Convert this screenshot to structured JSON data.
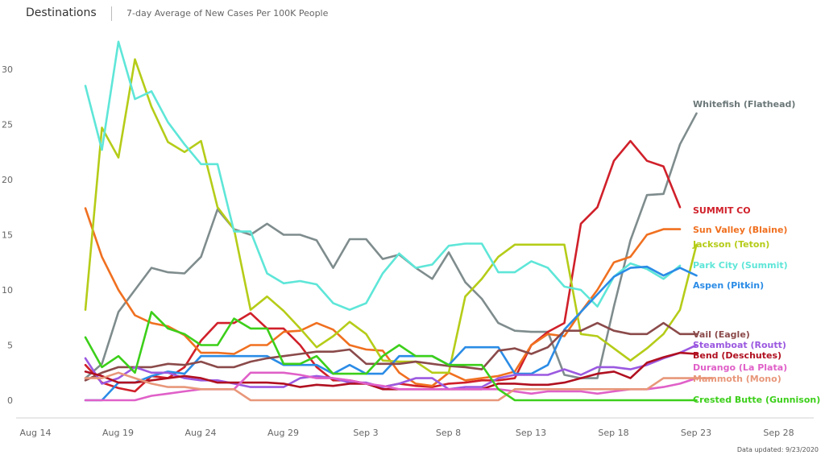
{
  "header": {
    "title": "Destinations",
    "subtitle": "7-day Average of New Cases Per 100K People"
  },
  "footer": {
    "updated": "Data updated: 9/23/2020"
  },
  "chart_data": {
    "type": "line",
    "title": "Destinations",
    "subtitle": "7-day Average of New Cases Per 100K People",
    "xlabel": "",
    "ylabel": "",
    "x_tick_labels": [
      "Aug 14",
      "Aug 19",
      "Aug 24",
      "Aug 29",
      "Sep 3",
      "Sep 8",
      "Sep 13",
      "Sep 18",
      "Sep 23",
      "Sep 28"
    ],
    "y_ticks": [
      0,
      5,
      10,
      15,
      20,
      25,
      30
    ],
    "ylim": [
      -2,
      34
    ],
    "grid": false,
    "legend": "inline labels at right end of lines",
    "x_start_date": "2020-08-18",
    "series": [
      {
        "name": "Whitefish (Flathead)",
        "color": "#7f8c8d",
        "values": [
          2.0,
          3.3,
          8.0,
          10.0,
          12.0,
          11.6,
          11.5,
          13.0,
          17.3,
          15.5,
          15.0,
          16.0,
          15.0,
          15.0,
          14.5,
          12.0,
          14.6,
          14.6,
          12.8,
          13.2,
          12.0,
          11.0,
          13.4,
          10.7,
          9.2,
          7.0,
          6.3,
          6.2,
          6.2,
          2.3,
          2.0,
          2.0,
          8.5,
          14.5,
          18.6,
          18.7,
          23.2,
          26.0
        ]
      },
      {
        "name": "SUMMIT CO",
        "color": "#d0202a",
        "values": [
          3.2,
          1.6,
          1.1,
          0.8,
          2.2,
          2.0,
          3.0,
          5.4,
          7.0,
          7.0,
          7.9,
          6.5,
          6.5,
          5.0,
          3.0,
          1.8,
          1.8,
          1.5,
          1.2,
          1.5,
          1.3,
          1.2,
          1.5,
          1.6,
          1.8,
          1.8,
          2.0,
          5.0,
          6.2,
          7.0,
          16.0,
          17.5,
          21.7,
          23.5,
          21.7,
          21.2,
          17.5
        ]
      },
      {
        "name": "Sun Valley (Blaine)",
        "color": "#f07020",
        "values": [
          17.4,
          13.0,
          10.0,
          7.7,
          7.0,
          6.7,
          5.9,
          4.3,
          4.3,
          4.2,
          5.0,
          5.0,
          6.2,
          6.3,
          7.0,
          6.4,
          5.0,
          4.6,
          4.5,
          2.5,
          1.5,
          1.3,
          2.5,
          1.8,
          2.0,
          2.2,
          2.6,
          5.0,
          6.0,
          5.8,
          8.0,
          10.0,
          12.5,
          13.0,
          15.0,
          15.5,
          15.5
        ]
      },
      {
        "name": "Jackson (Teton)",
        "color": "#b5cc18",
        "values": [
          8.2,
          24.7,
          22.0,
          30.9,
          26.6,
          23.4,
          22.5,
          23.5,
          17.5,
          15.5,
          8.2,
          9.4,
          8.1,
          6.5,
          4.8,
          5.8,
          7.1,
          6.0,
          3.6,
          3.5,
          3.5,
          2.5,
          2.5,
          9.4,
          11.0,
          13.0,
          14.1,
          14.1,
          14.1,
          14.1,
          6.0,
          5.8,
          4.7,
          3.6,
          4.7,
          6.0,
          8.2,
          14.1
        ]
      },
      {
        "name": "Park City (Summit)",
        "color": "#5ee6d8",
        "values": [
          28.5,
          22.7,
          32.5,
          27.3,
          28.0,
          25.2,
          23.2,
          21.4,
          21.4,
          15.3,
          15.3,
          11.5,
          10.6,
          10.8,
          10.5,
          8.8,
          8.2,
          8.8,
          11.5,
          13.3,
          12.0,
          12.3,
          14.0,
          14.2,
          14.2,
          11.6,
          11.6,
          12.6,
          12.0,
          10.3,
          10.0,
          8.5,
          11.2,
          12.4,
          11.9,
          11.0,
          12.2
        ]
      },
      {
        "name": "Aspen (Pitkin)",
        "color": "#2b8ce6",
        "values": [
          0.0,
          0.0,
          1.6,
          1.6,
          2.2,
          2.6,
          2.4,
          4.0,
          4.0,
          4.0,
          4.0,
          4.0,
          3.2,
          3.2,
          3.2,
          2.4,
          3.2,
          2.4,
          2.4,
          4.0,
          4.0,
          4.0,
          3.2,
          4.8,
          4.8,
          4.8,
          2.4,
          2.4,
          3.2,
          6.4,
          8.0,
          9.6,
          11.2,
          12.0,
          12.1,
          11.3,
          12.0,
          11.3
        ]
      },
      {
        "name": "Vail (Eagle)",
        "color": "#8b4a4a",
        "values": [
          1.8,
          2.5,
          3.0,
          3.0,
          3.0,
          3.3,
          3.2,
          3.5,
          3.0,
          3.0,
          3.5,
          3.8,
          4.0,
          4.2,
          4.4,
          4.4,
          4.6,
          3.3,
          3.3,
          3.3,
          3.5,
          3.3,
          3.1,
          3.0,
          2.8,
          4.5,
          4.7,
          4.2,
          4.8,
          6.3,
          6.3,
          7.0,
          6.3,
          6.0,
          6.0,
          7.0,
          6.0,
          6.0
        ]
      },
      {
        "name": "Steamboat (Routt)",
        "color": "#9b59e0",
        "values": [
          3.8,
          1.5,
          2.0,
          3.0,
          2.5,
          2.5,
          2.0,
          1.8,
          1.8,
          1.5,
          1.2,
          1.2,
          1.2,
          2.0,
          2.2,
          2.0,
          1.6,
          1.6,
          1.2,
          1.5,
          2.0,
          2.0,
          1.0,
          1.2,
          1.2,
          2.0,
          2.3,
          2.3,
          2.3,
          2.8,
          2.3,
          3.0,
          3.0,
          2.8,
          3.2,
          3.8,
          4.3,
          5.0
        ]
      },
      {
        "name": "Bend (Deschutes)",
        "color": "#b01020",
        "values": [
          2.6,
          2.2,
          1.6,
          1.6,
          1.8,
          2.0,
          2.2,
          2.0,
          1.6,
          1.6,
          1.6,
          1.6,
          1.5,
          1.2,
          1.4,
          1.3,
          1.5,
          1.5,
          1.0,
          1.0,
          1.0,
          1.0,
          1.0,
          1.0,
          1.0,
          1.5,
          1.5,
          1.4,
          1.4,
          1.6,
          2.0,
          2.4,
          2.6,
          2.0,
          3.4,
          3.9,
          4.3,
          4.2
        ]
      },
      {
        "name": "Durango (La Plata)",
        "color": "#e060c8",
        "values": [
          0.0,
          0.0,
          0.0,
          0.0,
          0.4,
          0.6,
          0.8,
          1.0,
          1.0,
          1.0,
          2.5,
          2.5,
          2.5,
          2.3,
          2.0,
          2.0,
          1.8,
          1.5,
          1.3,
          1.0,
          1.0,
          1.0,
          1.0,
          1.0,
          1.0,
          1.0,
          0.8,
          0.6,
          0.8,
          0.8,
          0.8,
          0.6,
          0.8,
          1.0,
          1.0,
          1.2,
          1.5,
          2.0
        ]
      },
      {
        "name": "Mammoth (Mono)",
        "color": "#e8977a",
        "values": [
          2.0,
          2.0,
          2.5,
          2.0,
          1.5,
          1.2,
          1.2,
          1.0,
          1.0,
          1.0,
          0.0,
          0.0,
          0.0,
          0.0,
          0.0,
          0.0,
          0.0,
          0.0,
          0.0,
          0.0,
          0.0,
          0.0,
          0.0,
          0.0,
          0.0,
          0.0,
          1.0,
          1.0,
          1.0,
          1.0,
          1.0,
          1.0,
          1.0,
          1.0,
          1.0,
          2.0,
          2.0,
          2.0,
          2.0
        ]
      },
      {
        "name": "Crested Butte (Gunnison)",
        "color": "#3ccf1a",
        "values": [
          5.7,
          3.0,
          4.0,
          2.5,
          8.0,
          6.5,
          6.0,
          5.0,
          5.0,
          7.4,
          6.5,
          6.5,
          3.3,
          3.3,
          4.0,
          2.4,
          2.4,
          2.4,
          4.0,
          5.0,
          4.0,
          4.0,
          3.2,
          3.2,
          3.2,
          1.0,
          0.0,
          0.0,
          0.0,
          0.0,
          0.0,
          0.0,
          0.0,
          0.0,
          0.0,
          0.0,
          0.0,
          0.0
        ]
      }
    ]
  }
}
